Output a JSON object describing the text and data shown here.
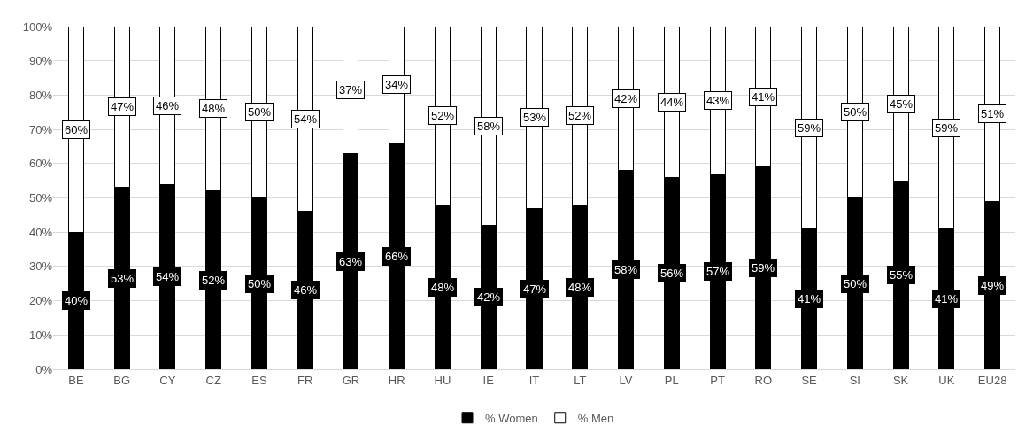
{
  "chart_data": {
    "type": "bar",
    "stacked": true,
    "grid": "y",
    "legend": "bottom",
    "categories": [
      "BE",
      "BG",
      "CY",
      "CZ",
      "ES",
      "FR",
      "GR",
      "HR",
      "HU",
      "IE",
      "IT",
      "LT",
      "LV",
      "PL",
      "PT",
      "RO",
      "SE",
      "SI",
      "SK",
      "UK",
      "EU28"
    ],
    "series": [
      {
        "name": "% Women",
        "color": "#000000",
        "values": [
          40,
          53,
          54,
          52,
          50,
          46,
          63,
          66,
          48,
          42,
          47,
          48,
          58,
          56,
          57,
          59,
          41,
          50,
          55,
          41,
          49
        ],
        "value_labels": [
          "40%",
          "53%",
          "54%",
          "52%",
          "50%",
          "46%",
          "63%",
          "66%",
          "48%",
          "42%",
          "47%",
          "48%",
          "58%",
          "56%",
          "57%",
          "59%",
          "41%",
          "50%",
          "55%",
          "41%",
          "49%"
        ]
      },
      {
        "name": "% Men",
        "color": "#ffffff",
        "values": [
          60,
          47,
          46,
          48,
          50,
          54,
          37,
          34,
          52,
          58,
          53,
          52,
          42,
          44,
          43,
          41,
          59,
          50,
          45,
          59,
          51
        ],
        "value_labels": [
          "60%",
          "47%",
          "46%",
          "48%",
          "50%",
          "54%",
          "37%",
          "34%",
          "52%",
          "58%",
          "53%",
          "52%",
          "42%",
          "44%",
          "43%",
          "41%",
          "59%",
          "50%",
          "45%",
          "59%",
          "51%"
        ]
      }
    ],
    "ylim": [
      0,
      100
    ],
    "yticks": [
      {
        "value": 0,
        "label": "0%"
      },
      {
        "value": 10,
        "label": "10%"
      },
      {
        "value": 20,
        "label": "20%"
      },
      {
        "value": 30,
        "label": "30%"
      },
      {
        "value": 40,
        "label": "40%"
      },
      {
        "value": 50,
        "label": "50%"
      },
      {
        "value": 60,
        "label": "60%"
      },
      {
        "value": 70,
        "label": "70%"
      },
      {
        "value": 80,
        "label": "80%"
      },
      {
        "value": 90,
        "label": "90%"
      },
      {
        "value": 100,
        "label": "100%"
      }
    ]
  }
}
